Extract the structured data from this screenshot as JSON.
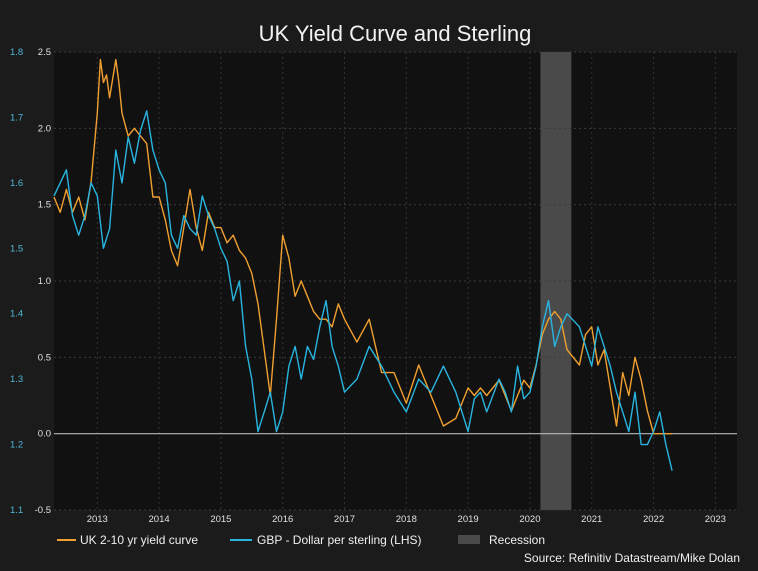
{
  "chart_data": {
    "type": "line",
    "title": "UK Yield Curve and Sterling",
    "source": "Source: Refinitiv Datastream/Mike Dolan",
    "x_ticks": [
      "2013",
      "2014",
      "2015",
      "2016",
      "2017",
      "2018",
      "2019",
      "2020",
      "2021",
      "2022",
      "2023"
    ],
    "xlim": [
      2012.3,
      2023.35
    ],
    "y_left": {
      "lim": [
        1.1,
        1.8
      ],
      "ticks": [
        "1.1",
        "1.2",
        "1.3",
        "1.4",
        "1.5",
        "1.6",
        "1.7",
        "1.8"
      ]
    },
    "y_right": {
      "lim": [
        -0.5,
        2.5
      ],
      "ticks": [
        "-0.5",
        "0.0",
        "0.5",
        "1.0",
        "1.5",
        "2.0",
        "2.5"
      ]
    },
    "grid": true,
    "legend_position": "bottom",
    "zero_line": 0.0,
    "recession": {
      "label": "Recession",
      "start": 2020.17,
      "end": 2020.67,
      "color": "#4a4a4a"
    },
    "series": [
      {
        "name": "UK 2-10 yr yield curve",
        "axis": "right",
        "color": "#f0a030",
        "x": [
          2012.3,
          2012.4,
          2012.5,
          2012.6,
          2012.7,
          2012.8,
          2012.9,
          2013.0,
          2013.05,
          2013.1,
          2013.15,
          2013.2,
          2013.3,
          2013.35,
          2013.4,
          2013.5,
          2013.6,
          2013.7,
          2013.8,
          2013.9,
          2014.0,
          2014.1,
          2014.2,
          2014.3,
          2014.4,
          2014.5,
          2014.6,
          2014.7,
          2014.8,
          2014.9,
          2015.0,
          2015.1,
          2015.2,
          2015.3,
          2015.4,
          2015.5,
          2015.6,
          2015.7,
          2015.8,
          2015.9,
          2016.0,
          2016.1,
          2016.2,
          2016.3,
          2016.4,
          2016.5,
          2016.6,
          2016.7,
          2016.8,
          2016.9,
          2017.0,
          2017.2,
          2017.4,
          2017.6,
          2017.8,
          2018.0,
          2018.2,
          2018.4,
          2018.6,
          2018.8,
          2019.0,
          2019.1,
          2019.2,
          2019.3,
          2019.5,
          2019.7,
          2019.9,
          2020.0,
          2020.1,
          2020.2,
          2020.3,
          2020.4,
          2020.5,
          2020.6,
          2020.8,
          2020.9,
          2021.0,
          2021.1,
          2021.2,
          2021.3,
          2021.4,
          2021.5,
          2021.6,
          2021.7,
          2021.8,
          2021.9,
          2022.0,
          2022.1,
          2022.2,
          2022.3
        ],
        "values": [
          1.55,
          1.45,
          1.6,
          1.45,
          1.55,
          1.4,
          1.65,
          2.1,
          2.45,
          2.3,
          2.35,
          2.2,
          2.45,
          2.3,
          2.1,
          1.95,
          2.0,
          1.95,
          1.9,
          1.55,
          1.55,
          1.4,
          1.2,
          1.1,
          1.35,
          1.6,
          1.35,
          1.2,
          1.45,
          1.35,
          1.35,
          1.25,
          1.3,
          1.2,
          1.15,
          1.05,
          0.85,
          0.55,
          0.25,
          0.75,
          1.3,
          1.15,
          0.9,
          1.0,
          0.9,
          0.8,
          0.75,
          0.75,
          0.7,
          0.85,
          0.75,
          0.6,
          0.75,
          0.4,
          0.4,
          0.2,
          0.45,
          0.25,
          0.05,
          0.1,
          0.3,
          0.25,
          0.3,
          0.25,
          0.35,
          0.15,
          0.35,
          0.3,
          0.45,
          0.65,
          0.75,
          0.8,
          0.75,
          0.55,
          0.45,
          0.65,
          0.7,
          0.45,
          0.55,
          0.3,
          0.05,
          0.4,
          0.25,
          0.5,
          0.35,
          0.15,
          0.0,
          0.0,
          0.0,
          0.0
        ]
      },
      {
        "name": "GBP - Dollar per sterling (LHS)",
        "axis": "left",
        "color": "#29b5e0",
        "x": [
          2012.3,
          2012.4,
          2012.5,
          2012.6,
          2012.7,
          2012.8,
          2012.9,
          2013.0,
          2013.1,
          2013.2,
          2013.3,
          2013.4,
          2013.5,
          2013.6,
          2013.7,
          2013.8,
          2013.9,
          2014.0,
          2014.1,
          2014.2,
          2014.3,
          2014.4,
          2014.5,
          2014.6,
          2014.7,
          2014.8,
          2014.9,
          2015.0,
          2015.1,
          2015.2,
          2015.3,
          2015.4,
          2015.5,
          2015.6,
          2015.7,
          2015.8,
          2015.9,
          2016.0,
          2016.1,
          2016.2,
          2016.3,
          2016.4,
          2016.5,
          2016.6,
          2016.7,
          2016.8,
          2016.9,
          2017.0,
          2017.2,
          2017.4,
          2017.6,
          2017.8,
          2018.0,
          2018.2,
          2018.4,
          2018.6,
          2018.8,
          2019.0,
          2019.1,
          2019.2,
          2019.3,
          2019.5,
          2019.6,
          2019.7,
          2019.8,
          2019.9,
          2020.0,
          2020.1,
          2020.2,
          2020.3,
          2020.4,
          2020.5,
          2020.6,
          2020.8,
          2020.9,
          2021.0,
          2021.1,
          2021.2,
          2021.3,
          2021.4,
          2021.5,
          2021.6,
          2021.7,
          2021.8,
          2021.9,
          2022.0,
          2022.1,
          2022.2,
          2022.25,
          2022.3
        ],
        "values": [
          1.58,
          1.6,
          1.62,
          1.55,
          1.52,
          1.55,
          1.6,
          1.58,
          1.5,
          1.53,
          1.65,
          1.6,
          1.67,
          1.63,
          1.68,
          1.71,
          1.65,
          1.62,
          1.6,
          1.52,
          1.5,
          1.55,
          1.53,
          1.52,
          1.58,
          1.55,
          1.53,
          1.5,
          1.48,
          1.42,
          1.45,
          1.35,
          1.3,
          1.22,
          1.25,
          1.28,
          1.22,
          1.25,
          1.32,
          1.35,
          1.3,
          1.35,
          1.33,
          1.38,
          1.42,
          1.35,
          1.32,
          1.28,
          1.3,
          1.35,
          1.32,
          1.28,
          1.25,
          1.3,
          1.28,
          1.32,
          1.28,
          1.22,
          1.27,
          1.28,
          1.25,
          1.3,
          1.28,
          1.25,
          1.32,
          1.27,
          1.28,
          1.32,
          1.38,
          1.42,
          1.35,
          1.38,
          1.4,
          1.38,
          1.35,
          1.32,
          1.38,
          1.35,
          1.32,
          1.28,
          1.25,
          1.22,
          1.28,
          1.2,
          1.2,
          1.22,
          1.25,
          1.2,
          1.18,
          1.16
        ]
      }
    ]
  },
  "legend": {
    "item1": "UK 2-10 yr yield curve",
    "item2": "GBP - Dollar per sterling (LHS)",
    "item3": "Recession"
  }
}
